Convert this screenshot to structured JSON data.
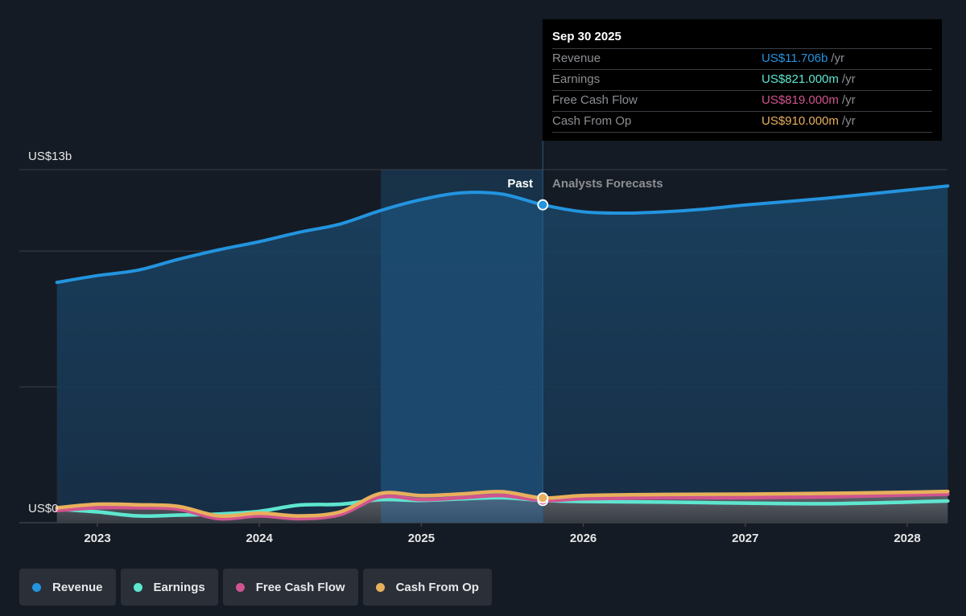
{
  "chart_data": {
    "type": "area",
    "y_axis": {
      "top_label": "US$13b",
      "bottom_label": "US$0",
      "ylim_billions": [
        0,
        13
      ],
      "grid_values_billions": [
        0,
        5,
        10,
        13
      ]
    },
    "x_axis": {
      "tick_labels": [
        "2023",
        "2024",
        "2025",
        "2026",
        "2027",
        "2028"
      ],
      "tick_years": [
        2023,
        2024,
        2025,
        2026,
        2027,
        2028
      ],
      "xlim_years": [
        2022.47,
        2028.25
      ]
    },
    "regions": {
      "past_label": "Past",
      "forecast_label": "Analysts Forecasts",
      "highlight_start_year": 2024.75,
      "divider_year": 2025.75
    },
    "series": [
      {
        "name": "Revenue",
        "color": "#2394df",
        "x": [
          2022.75,
          2023.0,
          2023.25,
          2023.5,
          2023.75,
          2024.0,
          2024.25,
          2024.5,
          2024.75,
          2025.0,
          2025.25,
          2025.5,
          2025.75,
          2026.0,
          2026.25,
          2026.5,
          2026.75,
          2027.0,
          2027.5,
          2028.0,
          2028.25
        ],
        "values": [
          8.85,
          9.1,
          9.3,
          9.7,
          10.05,
          10.35,
          10.7,
          11.0,
          11.5,
          11.9,
          12.15,
          12.1,
          11.706,
          11.45,
          11.4,
          11.45,
          11.55,
          11.7,
          11.95,
          12.25,
          12.4
        ]
      },
      {
        "name": "Earnings",
        "color": "#5ee6cf",
        "x": [
          2022.75,
          2023.0,
          2023.25,
          2023.5,
          2023.75,
          2024.0,
          2024.25,
          2024.5,
          2024.75,
          2025.0,
          2025.25,
          2025.5,
          2025.75,
          2026.0,
          2026.5,
          2027.0,
          2027.5,
          2028.0,
          2028.25
        ],
        "values": [
          0.5,
          0.4,
          0.25,
          0.28,
          0.32,
          0.42,
          0.65,
          0.68,
          0.85,
          0.82,
          0.88,
          0.92,
          0.821,
          0.78,
          0.76,
          0.72,
          0.7,
          0.76,
          0.8
        ]
      },
      {
        "name": "Free Cash Flow",
        "color": "#d0548f",
        "x": [
          2022.75,
          2023.0,
          2023.25,
          2023.5,
          2023.75,
          2024.0,
          2024.25,
          2024.5,
          2024.75,
          2025.0,
          2025.25,
          2025.5,
          2025.75,
          2026.0,
          2026.5,
          2027.0,
          2027.5,
          2028.0,
          2028.25
        ],
        "values": [
          0.45,
          0.55,
          0.55,
          0.5,
          0.15,
          0.25,
          0.15,
          0.3,
          0.95,
          0.85,
          0.92,
          1.0,
          0.819,
          0.88,
          0.92,
          0.92,
          0.95,
          1.02,
          1.05
        ]
      },
      {
        "name": "Cash From Op",
        "color": "#e8b05c",
        "x": [
          2022.75,
          2023.0,
          2023.25,
          2023.5,
          2023.75,
          2024.0,
          2024.25,
          2024.5,
          2024.75,
          2025.0,
          2025.25,
          2025.5,
          2025.75,
          2026.0,
          2026.5,
          2027.0,
          2027.5,
          2028.0,
          2028.25
        ],
        "values": [
          0.55,
          0.68,
          0.66,
          0.6,
          0.25,
          0.35,
          0.25,
          0.4,
          1.08,
          1.0,
          1.06,
          1.14,
          0.91,
          1.0,
          1.04,
          1.05,
          1.08,
          1.12,
          1.15
        ]
      }
    ]
  },
  "tooltip": {
    "date": "Sep 30 2025",
    "rows": [
      {
        "name": "Revenue",
        "value": "US$11.706b",
        "unit": "/yr",
        "color": "#2394df"
      },
      {
        "name": "Earnings",
        "value": "US$821.000m",
        "unit": "/yr",
        "color": "#5ee6cf"
      },
      {
        "name": "Free Cash Flow",
        "value": "US$819.000m",
        "unit": "/yr",
        "color": "#d0548f"
      },
      {
        "name": "Cash From Op",
        "value": "US$910.000m",
        "unit": "/yr",
        "color": "#e8b05c"
      }
    ]
  },
  "legend": [
    {
      "label": "Revenue",
      "color": "#2394df"
    },
    {
      "label": "Earnings",
      "color": "#5ee6cf"
    },
    {
      "label": "Free Cash Flow",
      "color": "#d0548f"
    },
    {
      "label": "Cash From Op",
      "color": "#e8b05c"
    }
  ]
}
